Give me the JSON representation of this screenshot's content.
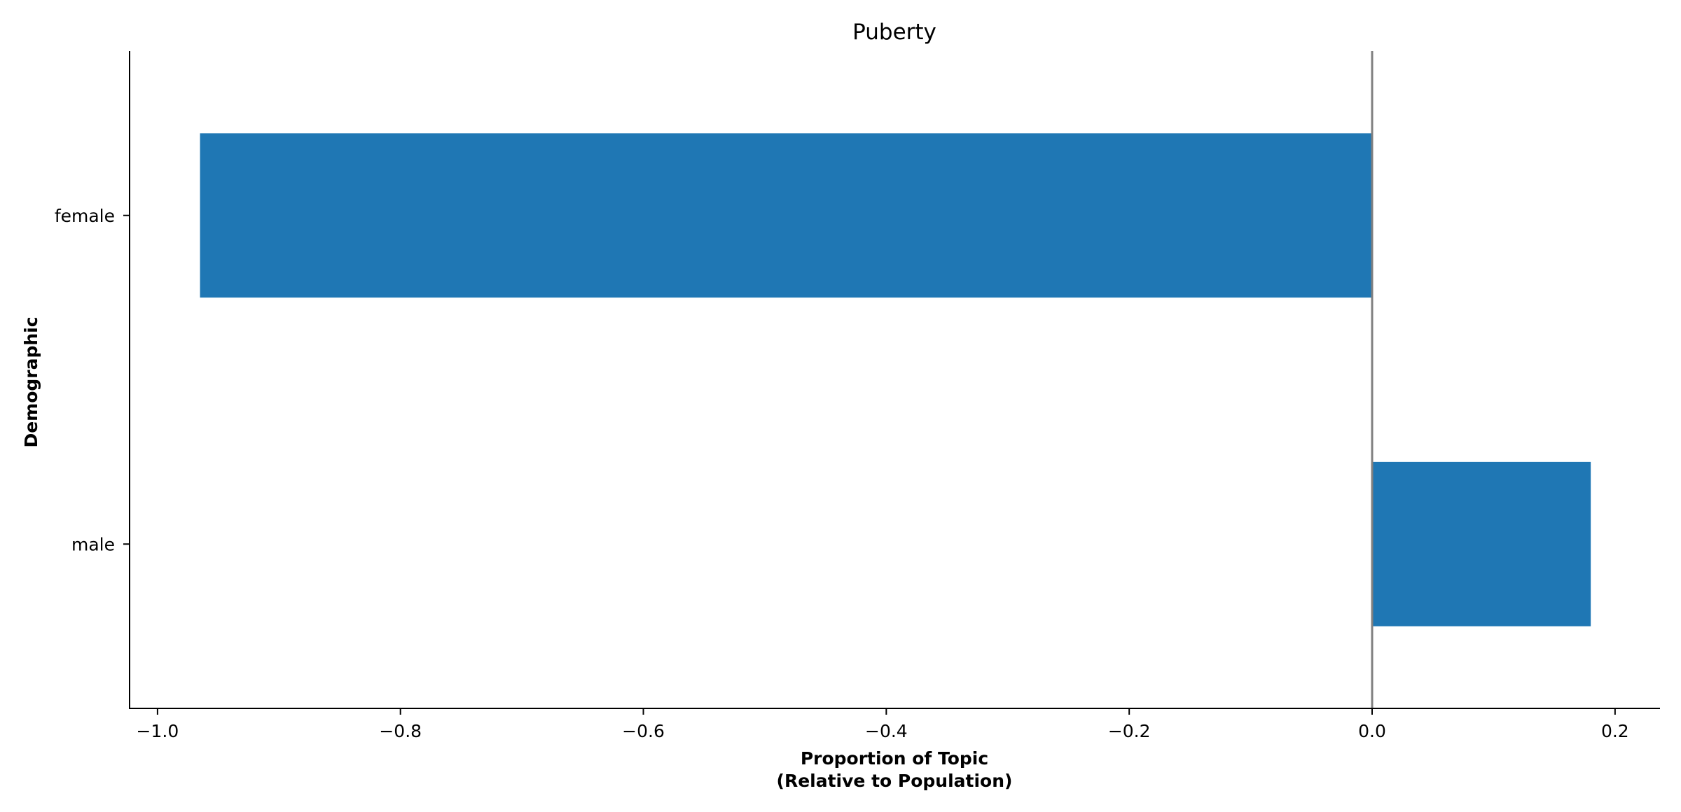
{
  "chart_data": {
    "type": "bar",
    "orientation": "horizontal",
    "title": "Puberty",
    "xlabel": [
      "Proportion of Topic",
      "(Relative to Population)"
    ],
    "ylabel": "Demographic",
    "categories": [
      "female",
      "male"
    ],
    "values": [
      -0.965,
      0.18
    ],
    "xlim": [
      -1.023,
      0.237
    ],
    "xticks": [
      -1.0,
      -0.8,
      -0.6,
      -0.4,
      -0.2,
      0.0,
      0.2
    ],
    "xtick_labels": [
      "−1.0",
      "−0.8",
      "−0.6",
      "−0.4",
      "−0.2",
      "0.0",
      "0.2"
    ],
    "zero_line": true,
    "grid": false,
    "bar_color": "#1f77b4",
    "zero_line_color": "#808080"
  }
}
